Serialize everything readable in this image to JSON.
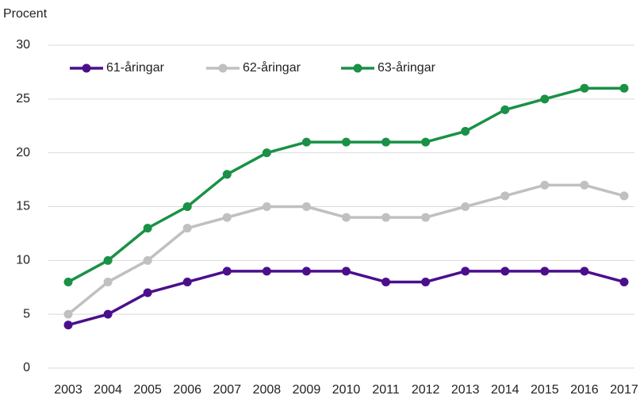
{
  "chart_data": {
    "type": "line",
    "ylabel": "Procent",
    "categories": [
      "2003",
      "2004",
      "2005",
      "2006",
      "2007",
      "2008",
      "2009",
      "2010",
      "2011",
      "2012",
      "2013",
      "2014",
      "2015",
      "2016",
      "2017"
    ],
    "series": [
      {
        "name": "61-åringar",
        "color": "#4b0f8c",
        "values": [
          4,
          5,
          7,
          8,
          9,
          9,
          9,
          9,
          8,
          8,
          9,
          9,
          9,
          9,
          8
        ]
      },
      {
        "name": "62-åringar",
        "color": "#c0c0c0",
        "values": [
          5,
          8,
          10,
          13,
          14,
          15,
          15,
          14,
          14,
          14,
          15,
          16,
          17,
          17,
          16
        ]
      },
      {
        "name": "63-åringar",
        "color": "#1a9146",
        "values": [
          8,
          10,
          13,
          15,
          18,
          20,
          21,
          21,
          21,
          21,
          22,
          24,
          25,
          26,
          26
        ]
      }
    ],
    "ylim": [
      0,
      30
    ],
    "yticks": [
      0,
      5,
      10,
      15,
      20,
      25,
      30
    ],
    "grid": true,
    "legend": "upper left"
  }
}
